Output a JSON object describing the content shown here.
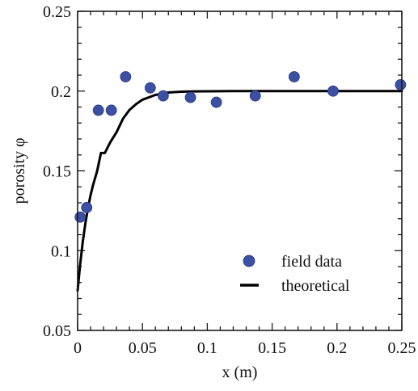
{
  "colors": {
    "background": "#ffffff",
    "axis": "#1a1a1a",
    "field_marker": "#3b4fa3",
    "field_marker_edge": "#2b3b85",
    "theory_line": "#000000"
  },
  "chart_data": {
    "type": "scatter",
    "title": "",
    "xlabel": "x (m)",
    "ylabel": "porosity φ",
    "xlim": [
      0,
      0.25
    ],
    "ylim": [
      0.05,
      0.25
    ],
    "x_ticks": [
      0,
      0.05,
      0.1,
      0.15,
      0.2,
      0.25
    ],
    "x_tick_labels": [
      "0",
      "0.05",
      "0.1",
      "0.15",
      "0.2",
      "0.25"
    ],
    "y_ticks": [
      0.05,
      0.1,
      0.15,
      0.2,
      0.25
    ],
    "y_tick_labels": [
      "0.05",
      "0.1",
      "0.15",
      "0.2",
      "0.25"
    ],
    "x_minor_ticks": [
      0.01,
      0.02,
      0.03,
      0.04,
      0.06,
      0.07,
      0.08,
      0.09,
      0.11,
      0.12,
      0.13,
      0.14,
      0.16,
      0.17,
      0.18,
      0.19,
      0.21,
      0.22,
      0.23,
      0.24
    ],
    "y_minor_ticks": [
      0.06,
      0.07,
      0.08,
      0.09,
      0.11,
      0.12,
      0.13,
      0.14,
      0.16,
      0.17,
      0.18,
      0.19,
      0.21,
      0.22,
      0.23,
      0.24
    ],
    "grid": false,
    "legend_position": "lower-right",
    "series": [
      {
        "name": "field data",
        "kind": "scatter",
        "marker": "circle",
        "x": [
          0.002,
          0.007,
          0.016,
          0.026,
          0.037,
          0.056,
          0.066,
          0.087,
          0.107,
          0.137,
          0.167,
          0.197,
          0.249
        ],
        "y": [
          0.121,
          0.127,
          0.188,
          0.188,
          0.209,
          0.202,
          0.197,
          0.196,
          0.193,
          0.197,
          0.209,
          0.2,
          0.204
        ]
      },
      {
        "name": "theoretical",
        "kind": "line",
        "x": [
          0,
          0.002,
          0.004,
          0.006,
          0.008,
          0.01,
          0.012,
          0.015,
          0.018,
          0.021,
          0.025,
          0.03,
          0.035,
          0.04,
          0.045,
          0.05,
          0.06,
          0.07,
          0.08,
          0.09,
          0.1,
          0.12,
          0.15,
          0.2,
          0.25
        ],
        "y": [
          0.075,
          0.0917,
          0.1057,
          0.1172,
          0.1268,
          0.1348,
          0.1414,
          0.1497,
          0.1612,
          0.1612,
          0.1677,
          0.1742,
          0.1827,
          0.1882,
          0.1918,
          0.1946,
          0.1976,
          0.1991,
          0.1996,
          0.1998,
          0.1999,
          0.2,
          0.2,
          0.2,
          0.2
        ]
      }
    ]
  }
}
